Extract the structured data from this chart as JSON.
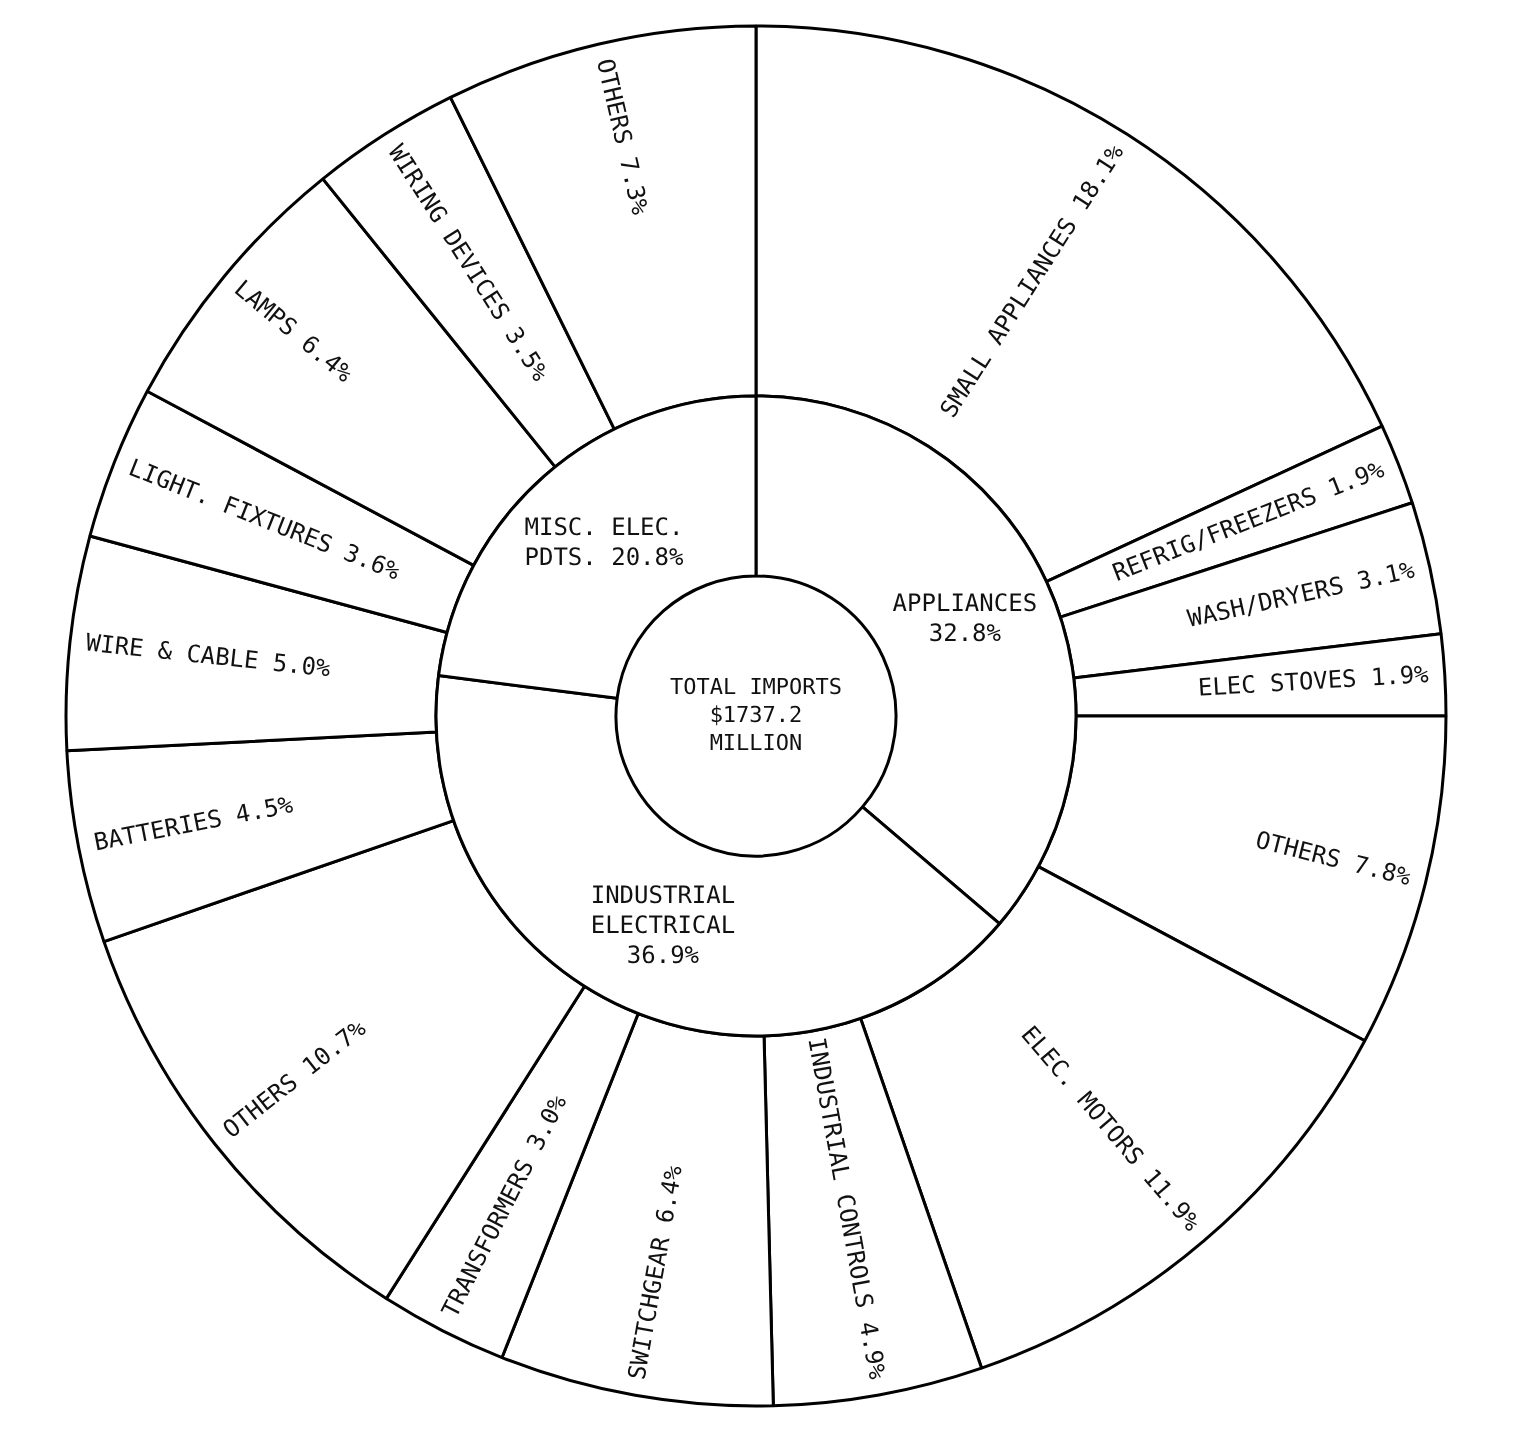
{
  "chart_data": [
    {
      "type": "donut",
      "title": "TOTAL IMPORTS $1737.2 MILLION",
      "categories": [
        "APPLIANCES",
        "INDUSTRIAL ELECTRICAL",
        "MISC. ELEC. PDTS."
      ],
      "values": [
        32.8,
        36.9,
        20.8
      ],
      "value_labels": [
        "32.8%",
        "36.9%",
        "20.8%"
      ],
      "colors": [
        "#ffffff",
        "#ffffff",
        "#ffffff"
      ]
    },
    {
      "type": "donut",
      "categories": [
        "SMALL APPLIANCES",
        "REFRIG/FREEZERS",
        "WASH/DRYERS",
        "ELEC STOVES",
        "OTHERS",
        "ELEC. MOTORS",
        "INDUSTRIAL CONTROLS",
        "SWITCHGEAR",
        "TRANSFORMERS",
        "OTHERS",
        "BATTERIES",
        "WIRE & CABLE",
        "LIGHT. FIXTURES",
        "LAMPS",
        "WIRING DEVICES",
        "OTHERS"
      ],
      "values": [
        18.1,
        1.9,
        3.1,
        1.9,
        7.8,
        11.9,
        4.9,
        6.4,
        3.0,
        10.7,
        4.5,
        5.0,
        3.6,
        6.4,
        3.5,
        7.3
      ],
      "value_labels": [
        "18.1%",
        "1.9%",
        "3.1%",
        "1.9%",
        "7.8%",
        "11.9%",
        "4.9%",
        "6.4%",
        "3.0%",
        "10.7%",
        "4.5%",
        "5.0%",
        "3.6%",
        "6.4%",
        "3.5%",
        "7.3%"
      ],
      "colors": [
        "#ffffff",
        "#ffffff",
        "#ffffff",
        "#ffffff",
        "#ffffff",
        "#ffffff",
        "#ffffff",
        "#ffffff",
        "#ffffff",
        "#ffffff",
        "#ffffff",
        "#ffffff",
        "#ffffff",
        "#ffffff",
        "#ffffff",
        "#ffffff"
      ]
    }
  ]
}
